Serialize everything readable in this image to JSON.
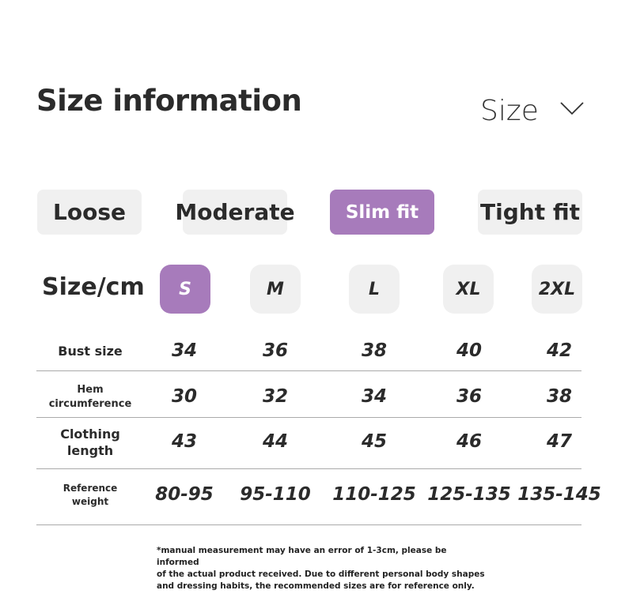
{
  "title": "Size information",
  "size_header": "Size",
  "icons": {
    "dropdown": "chevron-down-icon"
  },
  "accent_color": "#a77bbb",
  "fits": [
    {
      "label": "Loose",
      "selected": false
    },
    {
      "label": "Moderate",
      "selected": false
    },
    {
      "label": "Slim fit",
      "selected": true
    },
    {
      "label": "Tight fit",
      "selected": false
    }
  ],
  "size_label": "Size/cm",
  "sizes": [
    {
      "label": "S",
      "selected": true
    },
    {
      "label": "M",
      "selected": false
    },
    {
      "label": "L",
      "selected": false
    },
    {
      "label": "XL",
      "selected": false
    },
    {
      "label": "2XL",
      "selected": false
    }
  ],
  "rows": [
    {
      "label": "Bust size",
      "values": [
        "34",
        "36",
        "38",
        "40",
        "42"
      ]
    },
    {
      "label": "Hem\ncircumference",
      "values": [
        "30",
        "32",
        "34",
        "36",
        "38"
      ]
    },
    {
      "label": "Clothing\nlength",
      "values": [
        "43",
        "44",
        "45",
        "46",
        "47"
      ]
    },
    {
      "label": "Reference\nweight",
      "values": [
        "80-95",
        "95-110",
        "110-125",
        "125-135",
        "135-145"
      ]
    }
  ],
  "note": "*manual measurement may have an error of 1-3cm, please be informed\nof the actual product received.   Due to different personal body shapes\nand dressing habits, the recommended sizes are for reference only."
}
